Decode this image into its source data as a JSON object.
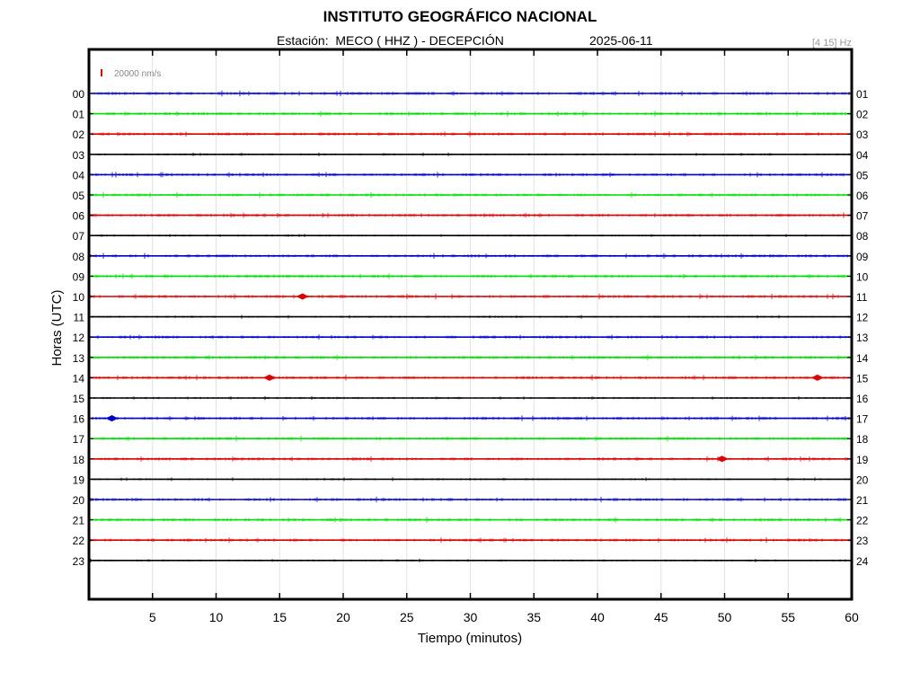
{
  "header": {
    "title": "INSTITUTO GEOGRÁFICO NACIONAL",
    "station_label": "Estación:",
    "station": "MECO ( HHZ ) - DECEPCIÓN",
    "date": "2025-06-11",
    "filter": "[4 15] Hz"
  },
  "chart_data": {
    "type": "line",
    "title": "INSTITUTO GEOGRÁFICO NACIONAL",
    "xlabel": "Tiempo (minutos)",
    "ylabel": "Horas (UTC)",
    "xlim": [
      0,
      60
    ],
    "x_ticks": [
      5,
      10,
      15,
      20,
      25,
      30,
      35,
      40,
      45,
      50,
      55,
      60
    ],
    "left_hour_labels": [
      "00",
      "01",
      "02",
      "03",
      "04",
      "05",
      "06",
      "07",
      "08",
      "09",
      "10",
      "11",
      "12",
      "13",
      "14",
      "15",
      "16",
      "17",
      "18",
      "19",
      "20",
      "21",
      "22",
      "23"
    ],
    "right_hour_labels": [
      "01",
      "02",
      "03",
      "04",
      "05",
      "06",
      "07",
      "08",
      "09",
      "10",
      "11",
      "12",
      "13",
      "14",
      "15",
      "16",
      "17",
      "18",
      "19",
      "20",
      "21",
      "22",
      "23",
      "24"
    ],
    "trace_colors": [
      "#0000cc",
      "#00dd00",
      "#dd0000",
      "#000000"
    ],
    "scale_bar": {
      "label": "20000 nm/s",
      "color": "#dd0000"
    },
    "grid": true,
    "events": [
      {
        "hour": "10",
        "minute": 16.8
      },
      {
        "hour": "14",
        "minute": 14.2
      },
      {
        "hour": "14",
        "minute": 57.3
      },
      {
        "hour": "16",
        "minute": 1.8
      },
      {
        "hour": "18",
        "minute": 49.8
      }
    ]
  }
}
